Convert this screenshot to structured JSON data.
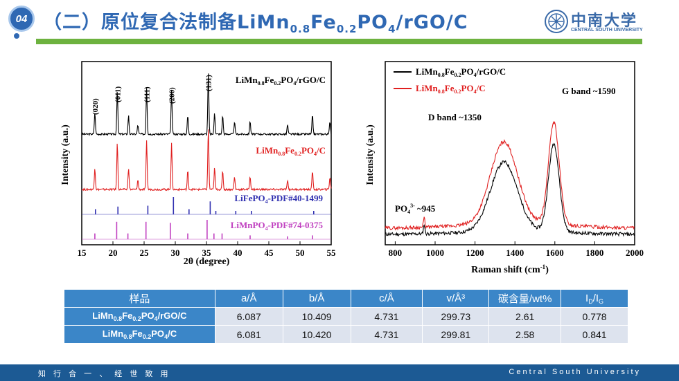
{
  "header": {
    "badge": "04",
    "title_prefix": "（二）原位复合法制备LiMn",
    "title_sub1": "0.8",
    "title_mid1": "Fe",
    "title_sub2": "0.2",
    "title_mid2": "PO",
    "title_sub3": "4",
    "title_suffix": "/rGO/C",
    "logo_cn": "中南大学",
    "logo_en": "CENTRAL SOUTH UNIVERSITY"
  },
  "colors": {
    "accent_blue": "#2f68b3",
    "green_stripe": "#6db23f",
    "table_header": "#3b86c8",
    "table_cell": "#dde3ee",
    "footer": "#1c5a94"
  },
  "chart_data": [
    {
      "type": "line",
      "xlabel": "2θ (degree)",
      "ylabel": "Intensity (a.u.)",
      "xlim": [
        15,
        55
      ],
      "xticks": [
        15,
        20,
        25,
        30,
        35,
        40,
        45,
        50,
        55
      ],
      "series": [
        {
          "name": "LiMn0.8Fe0.2PO4/rGO/C",
          "color": "#000000",
          "peaks": [
            [
              17.1,
              0.35
            ],
            [
              20.7,
              0.7
            ],
            [
              22.5,
              0.3
            ],
            [
              24.0,
              0.15
            ],
            [
              25.4,
              0.75
            ],
            [
              29.4,
              0.7
            ],
            [
              32.0,
              0.3
            ],
            [
              35.3,
              1.0
            ],
            [
              36.3,
              0.35
            ],
            [
              37.6,
              0.3
            ],
            [
              39.5,
              0.2
            ],
            [
              42.0,
              0.2
            ],
            [
              48.0,
              0.15
            ],
            [
              52.0,
              0.3
            ],
            [
              54.8,
              0.2
            ]
          ]
        },
        {
          "name": "LiMn0.8Fe0.2PO4/C",
          "color": "#e02020",
          "peaks": [
            [
              17.1,
              0.35
            ],
            [
              20.7,
              0.75
            ],
            [
              22.5,
              0.35
            ],
            [
              24.0,
              0.15
            ],
            [
              25.4,
              0.8
            ],
            [
              29.4,
              0.75
            ],
            [
              32.0,
              0.3
            ],
            [
              35.3,
              1.0
            ],
            [
              36.3,
              0.35
            ],
            [
              37.6,
              0.3
            ],
            [
              39.5,
              0.2
            ],
            [
              42.0,
              0.2
            ],
            [
              48.0,
              0.15
            ],
            [
              52.0,
              0.3
            ],
            [
              54.8,
              0.2
            ]
          ]
        },
        {
          "name": "LiFePO4-PDF#40-1499",
          "color": "#3030b0",
          "type": "stick",
          "peaks": [
            [
              17.2,
              0.3
            ],
            [
              20.8,
              0.45
            ],
            [
              25.6,
              0.5
            ],
            [
              29.7,
              1.0
            ],
            [
              32.2,
              0.3
            ],
            [
              35.6,
              0.75
            ],
            [
              36.5,
              0.2
            ],
            [
              39.7,
              0.2
            ],
            [
              42.2,
              0.2
            ],
            [
              52.2,
              0.2
            ]
          ]
        },
        {
          "name": "LiMnPO4-PDF#74-0375",
          "color": "#c040c0",
          "type": "stick",
          "peaks": [
            [
              17.1,
              0.3
            ],
            [
              20.6,
              0.9
            ],
            [
              22.4,
              0.3
            ],
            [
              25.3,
              0.9
            ],
            [
              29.2,
              0.85
            ],
            [
              32.0,
              0.3
            ],
            [
              35.1,
              1.0
            ],
            [
              36.2,
              0.3
            ],
            [
              37.5,
              0.3
            ],
            [
              42.0,
              0.2
            ],
            [
              48.0,
              0.15
            ],
            [
              52.0,
              0.2
            ]
          ]
        }
      ],
      "annotations": [
        "(020)",
        "(011)",
        "(111)",
        "(200)",
        "(131)"
      ],
      "labels": {
        "s1a": "LiMn",
        "s1b": "0.8",
        "s1c": "Fe",
        "s1d": "0.2",
        "s1e": "PO",
        "s1f": "4",
        "s1g": "/rGO/C",
        "s2a": "LiMn",
        "s2b": "0.8",
        "s2c": "Fe",
        "s2d": "0.2",
        "s2e": "PO",
        "s2f": "4",
        "s2g": "/C",
        "s3a": "LiFePO",
        "s3b": "4",
        "s3c": "-PDF#40-1499",
        "s4a": "LiMnPO",
        "s4b": "4",
        "s4c": "-PDF#74-0375"
      }
    },
    {
      "type": "line",
      "xlabel": "Raman shift (cm",
      "xlabel_sup": "-1",
      "xlabel_end": ")",
      "ylabel": "Intensity (a.u.)",
      "xlim": [
        750,
        2000
      ],
      "xticks": [
        800,
        1000,
        1200,
        1400,
        1600,
        1800,
        2000
      ],
      "series": [
        {
          "name": "LiMn0.8Fe0.2PO4/rGO/C",
          "color": "#000000"
        },
        {
          "name": "LiMn0.8Fe0.2PO4/C",
          "color": "#e02020"
        }
      ],
      "annotations": {
        "d_band": "D band ~1350",
        "g_band": "G band ~1590",
        "po4_a": "PO",
        "po4_sub": "4",
        "po4_sup": "3-",
        "po4_b": " ~945"
      },
      "legend": {
        "l1a": "LiMn",
        "l1b": "0.8",
        "l1c": "Fe",
        "l1d": "0.2",
        "l1e": "PO",
        "l1f": "4",
        "l1g": "/rGO/C",
        "l2a": "LiMn",
        "l2b": "0.8",
        "l2c": "Fe",
        "l2d": "0.2",
        "l2e": "PO",
        "l2f": "4",
        "l2g": "/C"
      }
    }
  ],
  "table": {
    "headers": [
      "样品",
      "a/Å",
      "b/Å",
      "c/Å",
      "v/Å³",
      "碳含量/wt%"
    ],
    "header_last": {
      "a": "I",
      "b": "D",
      "c": "/I",
      "d": "G"
    },
    "rows": [
      {
        "name_a": "LiMn",
        "name_b": "0.8",
        "name_c": "Fe",
        "name_d": "0.2",
        "name_e": "PO",
        "name_f": "4",
        "name_g": "/rGO/C",
        "values": [
          "6.087",
          "10.409",
          "4.731",
          "299.73",
          "2.61",
          "0.778"
        ]
      },
      {
        "name_a": "LiMn",
        "name_b": "0.8",
        "name_c": "Fe",
        "name_d": "0.2",
        "name_e": "PO",
        "name_f": "4",
        "name_g": "/C",
        "values": [
          "6.081",
          "10.420",
          "4.731",
          "299.81",
          "2.58",
          "0.841"
        ]
      }
    ]
  },
  "footer": {
    "left": "知 行 合 一 、 经 世 致 用",
    "right": "Central South University"
  }
}
